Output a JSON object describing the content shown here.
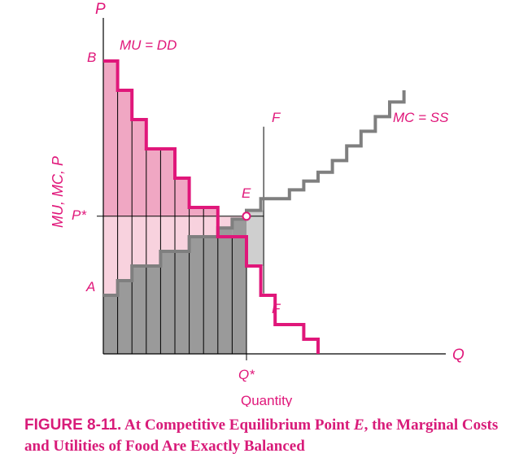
{
  "colors": {
    "demand": "#e0177a",
    "supply": "#7f7f7f",
    "consumer_surplus": "#f0a7c3",
    "producer_surplus": "#f8d2de",
    "cost": "#9a9a9a",
    "excess_cost": "#cfcfcf",
    "axis": "#000000",
    "label": "#e0177a"
  },
  "chart_data": {
    "type": "step",
    "y_axis_label": "MU, MC, P",
    "y_axis_letter": "P",
    "x_axis_letter": "Q",
    "x_axis_title": "Quantity",
    "series": [
      {
        "name": "MU = DD",
        "values": [
          10,
          9,
          8,
          7,
          7,
          6,
          5,
          5,
          4,
          4,
          3,
          2,
          1,
          1,
          0.5
        ]
      },
      {
        "name": "MC = SS",
        "values": [
          2,
          2.5,
          3,
          3,
          3.5,
          3.5,
          4,
          4,
          4.3,
          4.6,
          4.9,
          5.3,
          5.3,
          5.6,
          5.9,
          6.2,
          6.6,
          7.1,
          7.6,
          8.1,
          8.6
        ]
      }
    ],
    "equilibrium": {
      "q": 10,
      "p": 4.7
    },
    "bracket_q": 11.2,
    "q_max": 17,
    "p_max": 10
  },
  "labels": {
    "b": "B",
    "a": "A",
    "e": "E",
    "f_top": "F",
    "f_bottom": "F",
    "p_star": "P*",
    "q_star": "Q*"
  },
  "caption": {
    "label": "FIGURE 8-11.",
    "text_before": " At Competitive Equilibrium Point ",
    "emph": "E",
    "text_after": ", the Marginal Costs and Utilities of Food Are Exactly Balanced"
  }
}
